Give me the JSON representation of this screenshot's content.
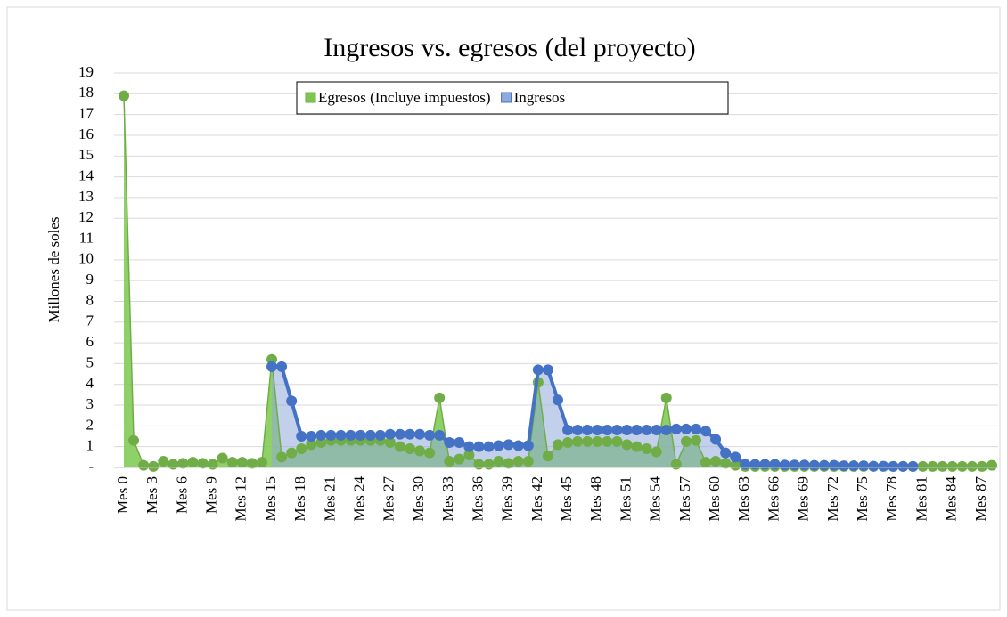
{
  "chart_data": {
    "type": "area",
    "title": "Ingresos vs. egresos (del proyecto)",
    "y_label": "Millones de soles",
    "categories": [
      "Mes 0",
      null,
      null,
      "Mes 3",
      null,
      null,
      "Mes 6",
      null,
      null,
      "Mes 9",
      null,
      null,
      "Mes 12",
      null,
      null,
      "Mes 15",
      null,
      null,
      "Mes 18",
      null,
      null,
      "Mes 21",
      null,
      null,
      "Mes 24",
      null,
      null,
      "Mes 27",
      null,
      null,
      "Mes 30",
      null,
      null,
      "Mes 33",
      null,
      null,
      "Mes 36",
      null,
      null,
      "Mes 39",
      null,
      null,
      "Mes 42",
      null,
      null,
      "Mes 45",
      null,
      null,
      "Mes 48",
      null,
      null,
      "Mes 51",
      null,
      null,
      "Mes 54",
      null,
      null,
      "Mes 57",
      null,
      null,
      "Mes 60",
      null,
      null,
      "Mes 63",
      null,
      null,
      "Mes 66",
      null,
      null,
      "Mes 69",
      null,
      null,
      "Mes 72",
      null,
      null,
      "Mes 75",
      null,
      null,
      "Mes 78",
      null,
      null,
      "Mes 81",
      null,
      null,
      "Mes 84",
      null,
      null,
      "Mes 87",
      null
    ],
    "series": [
      {
        "name": "Egresos (Incluye impuestos)",
        "color": "#70ad47",
        "fill": "#7cc84e",
        "values": [
          17.9,
          1.3,
          0.1,
          0.05,
          0.3,
          0.15,
          0.2,
          0.25,
          0.2,
          0.15,
          0.45,
          0.25,
          0.25,
          0.2,
          0.25,
          5.2,
          0.5,
          0.7,
          0.9,
          1.1,
          1.2,
          1.3,
          1.3,
          1.3,
          1.3,
          1.3,
          1.3,
          1.2,
          1.0,
          0.9,
          0.8,
          0.7,
          3.35,
          0.3,
          0.4,
          0.6,
          0.15,
          0.15,
          0.3,
          0.2,
          0.3,
          0.3,
          4.1,
          0.55,
          1.1,
          1.2,
          1.25,
          1.25,
          1.25,
          1.25,
          1.25,
          1.1,
          1.0,
          0.9,
          0.75,
          3.35,
          0.15,
          1.25,
          1.3,
          0.25,
          0.3,
          0.2,
          0.1,
          0.05,
          0.05,
          0.05,
          0.05,
          0.05,
          0.05,
          0.05,
          0.05,
          0.05,
          0.05,
          0.05,
          0.05,
          0.05,
          0.05,
          0.05,
          0.05,
          0.05,
          0.05,
          0.05,
          0.05,
          0.05,
          0.05,
          0.05,
          0.05,
          0.05,
          0.1
        ]
      },
      {
        "name": "Ingresos",
        "color": "#4472c4",
        "fill": "#8faadc",
        "values": [
          null,
          null,
          null,
          null,
          null,
          null,
          null,
          null,
          null,
          null,
          null,
          null,
          null,
          null,
          null,
          4.85,
          4.85,
          3.2,
          1.5,
          1.5,
          1.55,
          1.55,
          1.55,
          1.55,
          1.55,
          1.55,
          1.55,
          1.6,
          1.6,
          1.6,
          1.6,
          1.55,
          1.55,
          1.2,
          1.2,
          1.0,
          1.0,
          1.0,
          1.05,
          1.1,
          1.05,
          1.05,
          4.7,
          4.7,
          3.25,
          1.8,
          1.8,
          1.8,
          1.8,
          1.8,
          1.8,
          1.8,
          1.8,
          1.8,
          1.8,
          1.8,
          1.85,
          1.85,
          1.85,
          1.75,
          1.35,
          0.7,
          0.5,
          0.15,
          0.15,
          0.15,
          0.15,
          0.12,
          0.12,
          0.12,
          0.1,
          0.1,
          0.1,
          0.08,
          0.08,
          0.08,
          0.06,
          0.06,
          0.05,
          0.05,
          0.05,
          null,
          null,
          null,
          null,
          null,
          null,
          null,
          null
        ]
      }
    ],
    "ylim": [
      0,
      19
    ],
    "yticks": [
      {
        "value": 0,
        "label": "-"
      },
      1,
      2,
      3,
      4,
      5,
      6,
      7,
      8,
      9,
      10,
      11,
      12,
      13,
      14,
      15,
      16,
      17,
      18,
      19
    ],
    "grid": true,
    "legend": "top"
  }
}
